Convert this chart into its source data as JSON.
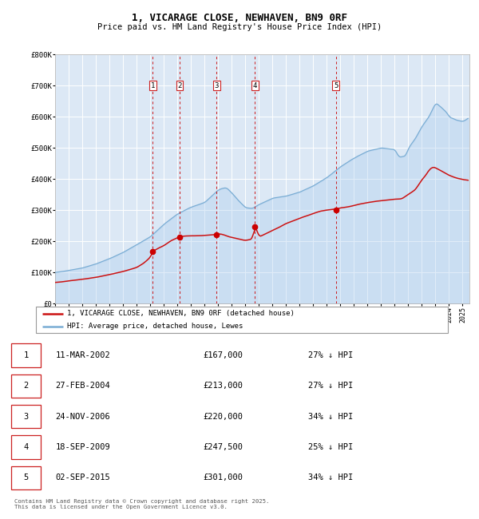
{
  "title": "1, VICARAGE CLOSE, NEWHAVEN, BN9 0RF",
  "subtitle": "Price paid vs. HM Land Registry's House Price Index (HPI)",
  "title_fontsize": 9,
  "subtitle_fontsize": 7.5,
  "background_color": "#ffffff",
  "plot_bg_color": "#dce8f5",
  "grid_color": "#ffffff",
  "ylim": [
    0,
    800000
  ],
  "yticks": [
    0,
    100000,
    200000,
    300000,
    400000,
    500000,
    600000,
    700000,
    800000
  ],
  "ytick_labels": [
    "£0",
    "£100K",
    "£200K",
    "£300K",
    "£400K",
    "£500K",
    "£600K",
    "£700K",
    "£800K"
  ],
  "hpi_color": "#7aadd4",
  "hpi_fill_color": "#aaccee",
  "price_color": "#cc1111",
  "marker_color": "#cc0000",
  "vline_color": "#cc0000",
  "transaction_label_border": "#cc2222",
  "transactions": [
    {
      "num": 1,
      "date_str": "11-MAR-2002",
      "year": 2002.19,
      "price": 167000,
      "label": "1"
    },
    {
      "num": 2,
      "date_str": "27-FEB-2004",
      "year": 2004.16,
      "price": 213000,
      "label": "2"
    },
    {
      "num": 3,
      "date_str": "24-NOV-2006",
      "year": 2006.9,
      "price": 220000,
      "label": "3"
    },
    {
      "num": 4,
      "date_str": "18-SEP-2009",
      "year": 2009.71,
      "price": 247500,
      "label": "4"
    },
    {
      "num": 5,
      "date_str": "02-SEP-2015",
      "year": 2015.67,
      "price": 301000,
      "label": "5"
    }
  ],
  "legend_entries": [
    "1, VICARAGE CLOSE, NEWHAVEN, BN9 0RF (detached house)",
    "HPI: Average price, detached house, Lewes"
  ],
  "footer_text": "Contains HM Land Registry data © Crown copyright and database right 2025.\nThis data is licensed under the Open Government Licence v3.0.",
  "table_rows": [
    [
      "1",
      "11-MAR-2002",
      "£167,000",
      "27% ↓ HPI"
    ],
    [
      "2",
      "27-FEB-2004",
      "£213,000",
      "27% ↓ HPI"
    ],
    [
      "3",
      "24-NOV-2006",
      "£220,000",
      "34% ↓ HPI"
    ],
    [
      "4",
      "18-SEP-2009",
      "£247,500",
      "25% ↓ HPI"
    ],
    [
      "5",
      "02-SEP-2015",
      "£301,000",
      "34% ↓ HPI"
    ]
  ],
  "xlim": [
    1995,
    2025.5
  ],
  "xticks": [
    1995,
    1996,
    1997,
    1998,
    1999,
    2000,
    2001,
    2002,
    2003,
    2004,
    2005,
    2006,
    2007,
    2008,
    2009,
    2010,
    2011,
    2012,
    2013,
    2014,
    2015,
    2016,
    2017,
    2018,
    2019,
    2020,
    2021,
    2022,
    2023,
    2024,
    2025
  ]
}
